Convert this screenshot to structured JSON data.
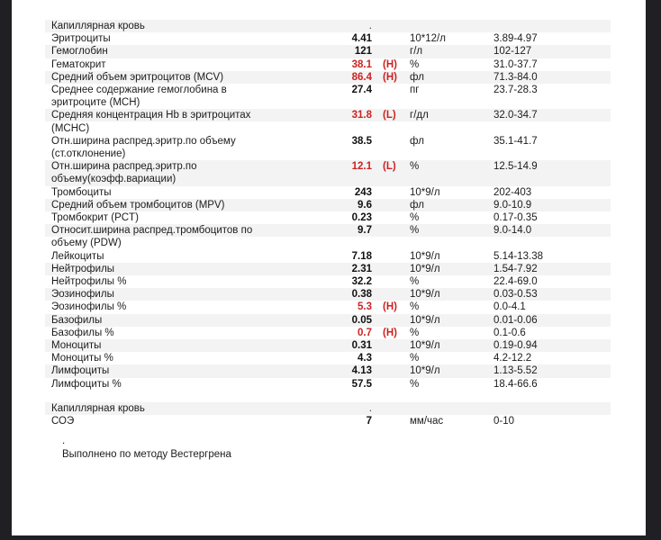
{
  "report": {
    "colors": {
      "abnormal_red": "#cc2222",
      "stripe_gray": "#f3f3f3",
      "frame_dark": "#202024"
    },
    "sections": [
      {
        "header": {
          "label": "Капиллярная кровь",
          "value": "."
        },
        "rows": [
          {
            "label": "Эритроциты",
            "value": "4.41",
            "flag": "",
            "unit": "10*12/л",
            "range": "3.89-4.97",
            "abnormal": false,
            "bg": "white"
          },
          {
            "label": "Гемоглобин",
            "value": "121",
            "flag": "",
            "unit": "г/л",
            "range": "102-127",
            "abnormal": false,
            "bg": "gray"
          },
          {
            "label": "Гематокрит",
            "value": "38.1",
            "flag": "(H)",
            "unit": "%",
            "range": "31.0-37.7",
            "abnormal": true,
            "bg": "white"
          },
          {
            "label": "Средний объем эритроцитов (MCV)",
            "value": "86.4",
            "flag": "(H)",
            "unit": "фл",
            "range": "71.3-84.0",
            "abnormal": true,
            "bg": "gray"
          },
          {
            "label": "Среднее содержание гемоглобина в\nэритроците (MCH)",
            "value": "27.4",
            "flag": "",
            "unit": "пг",
            "range": "23.7-28.3",
            "abnormal": false,
            "bg": "white"
          },
          {
            "label": "Средняя концентрация Hb в эритроцитах\n(MCHC)",
            "value": "31.8",
            "flag": "(L)",
            "unit": "г/дл",
            "range": "32.0-34.7",
            "abnormal": true,
            "bg": "half"
          },
          {
            "label": "Отн.ширина распред.эритр.по объему\n(ст.отклонение)",
            "value": "38.5",
            "flag": "",
            "unit": "фл",
            "range": "35.1-41.7",
            "abnormal": false,
            "bg": "white"
          },
          {
            "label": "Отн.ширина распред.эритр.по\nобъему(коэфф.вариации)",
            "value": "12.1",
            "flag": "(L)",
            "unit": "%",
            "range": "12.5-14.9",
            "abnormal": true,
            "bg": "gray"
          },
          {
            "label": "Тромбоциты",
            "value": "243",
            "flag": "",
            "unit": "10*9/л",
            "range": "202-403",
            "abnormal": false,
            "bg": "white"
          },
          {
            "label": "Средний объем тромбоцитов (MPV)",
            "value": "9.6",
            "flag": "",
            "unit": "фл",
            "range": "9.0-10.9",
            "abnormal": false,
            "bg": "gray"
          },
          {
            "label": "Тромбокрит (PCT)",
            "value": "0.23",
            "flag": "",
            "unit": "%",
            "range": "0.17-0.35",
            "abnormal": false,
            "bg": "white"
          },
          {
            "label": "Относит.ширина распред.тромбоцитов по\nобъему (PDW)",
            "value": "9.7",
            "flag": "",
            "unit": "%",
            "range": "9.0-14.0",
            "abnormal": false,
            "bg": "half"
          },
          {
            "label": "Лейкоциты",
            "value": "7.18",
            "flag": "",
            "unit": "10*9/л",
            "range": "5.14-13.38",
            "abnormal": false,
            "bg": "white"
          },
          {
            "label": "Нейтрофилы",
            "value": "2.31",
            "flag": "",
            "unit": "10*9/л",
            "range": "1.54-7.92",
            "abnormal": false,
            "bg": "gray"
          },
          {
            "label": "Нейтрофилы %",
            "value": "32.2",
            "flag": "",
            "unit": "%",
            "range": "22.4-69.0",
            "abnormal": false,
            "bg": "white"
          },
          {
            "label": "Эозинофилы",
            "value": "0.38",
            "flag": "",
            "unit": "10*9/л",
            "range": "0.03-0.53",
            "abnormal": false,
            "bg": "gray"
          },
          {
            "label": "Эозинофилы %",
            "value": "5.3",
            "flag": "(H)",
            "unit": "%",
            "range": "0.0-4.1",
            "abnormal": true,
            "bg": "white"
          },
          {
            "label": "Базофилы",
            "value": "0.05",
            "flag": "",
            "unit": "10*9/л",
            "range": "0.01-0.06",
            "abnormal": false,
            "bg": "gray"
          },
          {
            "label": "Базофилы %",
            "value": "0.7",
            "flag": "(H)",
            "unit": "%",
            "range": "0.1-0.6",
            "abnormal": true,
            "bg": "white"
          },
          {
            "label": "Моноциты",
            "value": "0.31",
            "flag": "",
            "unit": "10*9/л",
            "range": "0.19-0.94",
            "abnormal": false,
            "bg": "gray"
          },
          {
            "label": "Моноциты %",
            "value": "4.3",
            "flag": "",
            "unit": "%",
            "range": "4.2-12.2",
            "abnormal": false,
            "bg": "white"
          },
          {
            "label": "Лимфоциты",
            "value": "4.13",
            "flag": "",
            "unit": "10*9/л",
            "range": "1.13-5.52",
            "abnormal": false,
            "bg": "gray"
          },
          {
            "label": "Лимфоциты %",
            "value": "57.5",
            "flag": "",
            "unit": "%",
            "range": "18.4-66.6",
            "abnormal": false,
            "bg": "white"
          }
        ]
      },
      {
        "header": {
          "label": "Капиллярная кровь",
          "value": "."
        },
        "rows": [
          {
            "label": "СОЭ",
            "value": "7",
            "flag": "",
            "unit": "мм/час",
            "range": "0-10",
            "abnormal": false,
            "bg": "white"
          }
        ]
      }
    ],
    "footer": {
      "dot": ".",
      "method_note": "Выполнено по методу Вестергрена"
    }
  }
}
